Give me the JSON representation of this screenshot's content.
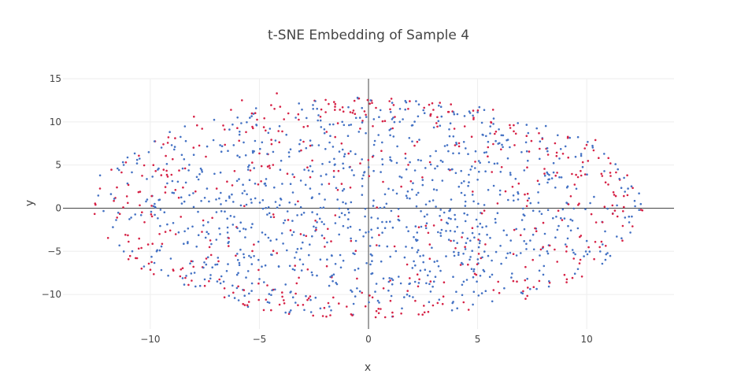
{
  "chart_data": {
    "type": "scatter",
    "title": "t-SNE Embedding of Sample 4",
    "xlabel": "x",
    "ylabel": "y",
    "xlim": [
      -14,
      14
    ],
    "ylim": [
      -14,
      15
    ],
    "xticks": [
      -10,
      -5,
      0,
      5,
      10
    ],
    "yticks": [
      -10,
      -5,
      0,
      5,
      10,
      15
    ],
    "xtick_labels": [
      "−10",
      "−5",
      "0",
      "5",
      "10"
    ],
    "ytick_labels": [
      "−10",
      "−5",
      "0",
      "5",
      "10",
      "15"
    ],
    "grid": true,
    "legend": "none",
    "point_count_approx": 1500,
    "series": [
      {
        "color": "#4472c4",
        "note_points_generated": true,
        "points_sample": [
          [
            -12.3,
            3.8
          ],
          [
            -11.5,
            4.6
          ],
          [
            -10.6,
            5.6
          ],
          [
            -9.8,
            0.5
          ],
          [
            -8.9,
            6.8
          ],
          [
            -7.5,
            1.2
          ],
          [
            -6.0,
            10.5
          ],
          [
            -5.2,
            7.8
          ],
          [
            -4.0,
            5.5
          ],
          [
            -3.1,
            3.2
          ],
          [
            -2.0,
            1.0
          ],
          [
            -1.2,
            10.0
          ],
          [
            -0.5,
            12.8
          ],
          [
            0.1,
            12.5
          ],
          [
            1.0,
            5.6
          ],
          [
            2.0,
            -4.6
          ],
          [
            2.8,
            0.8
          ],
          [
            3.5,
            7.2
          ],
          [
            4.6,
            3.0
          ],
          [
            5.2,
            9.9
          ],
          [
            6.5,
            4.1
          ],
          [
            7.3,
            5.5
          ],
          [
            8.2,
            6.6
          ],
          [
            9.1,
            2.4
          ],
          [
            10.8,
            6.3
          ],
          [
            11.5,
            3.4
          ],
          [
            12.4,
            -0.2
          ],
          [
            4.8,
            -8.0
          ],
          [
            -3.0,
            -6.5
          ],
          [
            -6.8,
            -3.0
          ]
        ]
      },
      {
        "color": "#d62246",
        "note_points_generated": true,
        "points_sample": [
          [
            -11.0,
            2.7
          ],
          [
            -10.4,
            -7.0
          ],
          [
            -9.4,
            7.4
          ],
          [
            -8.0,
            10.6
          ],
          [
            -6.3,
            11.4
          ],
          [
            -5.8,
            12.5
          ],
          [
            -4.2,
            13.3
          ],
          [
            -3.0,
            -11.2
          ],
          [
            -1.0,
            -11.4
          ],
          [
            0.2,
            9.5
          ],
          [
            1.5,
            -12.2
          ],
          [
            2.3,
            -12.3
          ],
          [
            3.4,
            -11.1
          ],
          [
            4.8,
            11.3
          ],
          [
            6.5,
            9.3
          ],
          [
            7.2,
            -10.5
          ],
          [
            8.0,
            -4.5
          ],
          [
            9.6,
            3.6
          ],
          [
            10.4,
            7.9
          ],
          [
            11.7,
            1.4
          ],
          [
            12.1,
            -2.1
          ],
          [
            -7.5,
            -9.0
          ],
          [
            -4.8,
            -11.8
          ],
          [
            6.8,
            -8.5
          ],
          [
            1.5,
            2.5
          ],
          [
            -0.3,
            -9.8
          ],
          [
            5.2,
            -0.6
          ],
          [
            -2.4,
            -2.5
          ],
          [
            3.0,
            -2.0
          ],
          [
            -8.6,
            -1.0
          ]
        ]
      }
    ]
  }
}
